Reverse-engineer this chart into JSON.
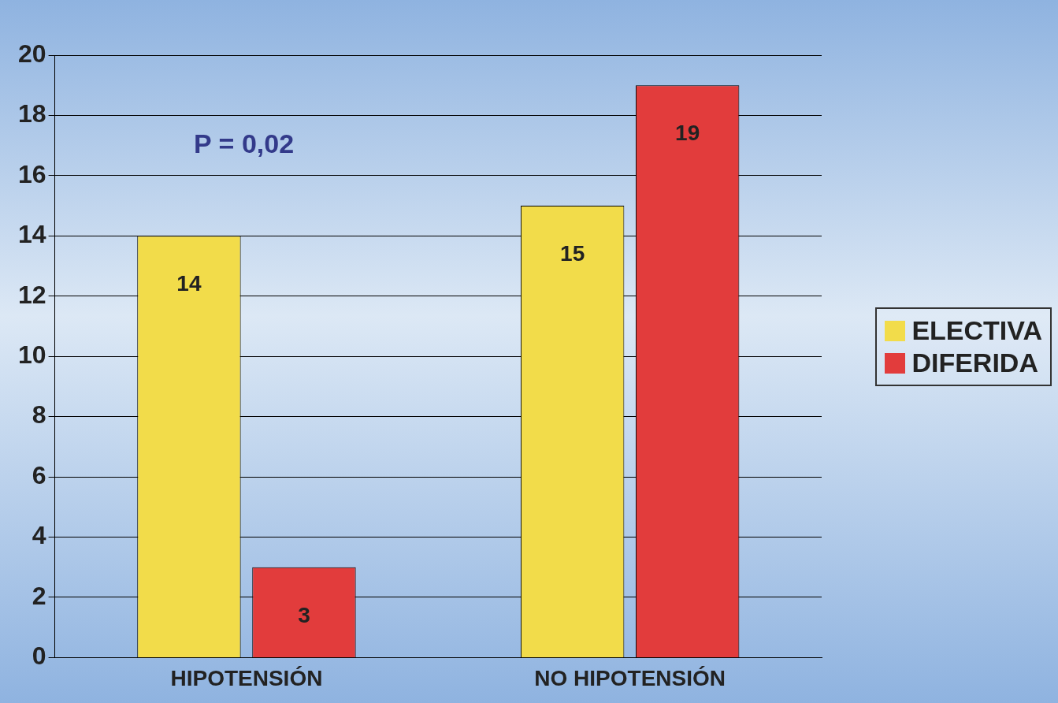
{
  "chart_data": {
    "type": "bar",
    "categories": [
      "HIPOTENSIÓN",
      "NO HIPOTENSIÓN"
    ],
    "series": [
      {
        "name": "ELECTIVA",
        "color": "#f2dc4a",
        "values": [
          14,
          15
        ]
      },
      {
        "name": "DIFERIDA",
        "color": "#e23c3c",
        "values": [
          3,
          19
        ]
      }
    ],
    "ylim": [
      0,
      20
    ],
    "yticks": [
      0,
      2,
      4,
      6,
      8,
      10,
      12,
      14,
      16,
      18,
      20
    ],
    "grid": "y",
    "legend": "right",
    "data_labels": true,
    "annotations": [
      "P = 0,02"
    ]
  }
}
